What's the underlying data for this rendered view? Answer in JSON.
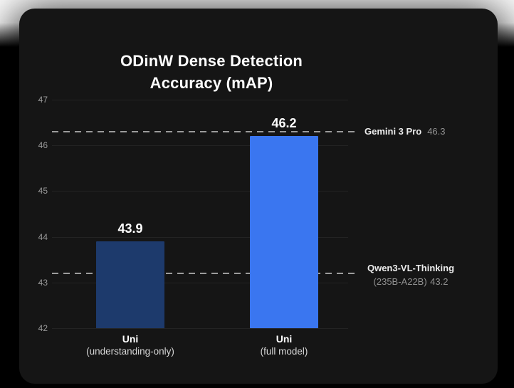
{
  "page": {
    "top_background": "#ffffff",
    "bottom_background": "#000000"
  },
  "card": {
    "background": "#151515",
    "accent_blue": "#3a76f0",
    "accent_navy": "#1d3a6c"
  },
  "chart_data": {
    "type": "bar",
    "title": "ODinW Dense Detection Accuracy (mAP)",
    "title_lines": [
      "ODinW Dense Detection",
      "Accuracy (mAP)"
    ],
    "xlabel": "",
    "ylabel": "",
    "ylim": [
      42,
      47
    ],
    "yticks": [
      42,
      43,
      44,
      45,
      46,
      47
    ],
    "grid": true,
    "legend_position": "none",
    "categories": [
      "Uni",
      "Uni"
    ],
    "category_sublabels": [
      "(understanding-only)",
      "(full model)"
    ],
    "values": [
      43.9,
      46.2
    ],
    "bars": [
      {
        "label": "Uni",
        "sublabel": "(understanding-only)",
        "value": 43.9,
        "value_label": "43.9",
        "color": "#1d3a6c"
      },
      {
        "label": "Uni",
        "sublabel": "(full model)",
        "value": 46.2,
        "value_label": "46.2",
        "color": "#3a76f0"
      }
    ],
    "reference_lines": [
      {
        "label": "Gemini 3 Pro",
        "sublabel": "",
        "value": 46.3,
        "value_label": "46.3",
        "layout": "inline",
        "line_style": "dashed",
        "line_color": "#9c9c9c"
      },
      {
        "label": "Qwen3-VL-Thinking",
        "sublabel": "(235B-A22B)",
        "value": 43.2,
        "value_label": "43.2",
        "layout": "stacked",
        "line_style": "dashed",
        "line_color": "#9c9c9c"
      }
    ]
  }
}
